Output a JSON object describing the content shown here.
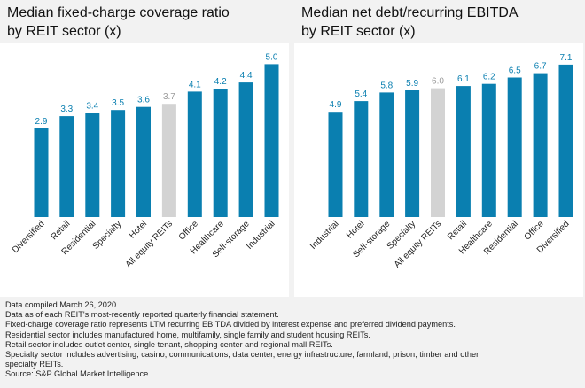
{
  "colors": {
    "bar": "#0a7fb0",
    "highlight_bar": "#d3d3d3",
    "value_label": "#0a7fb0",
    "highlight_label": "#9a9a9a"
  },
  "chart_data": [
    {
      "type": "bar",
      "title": "Median fixed-charge coverage ratio\nby REIT sector (x)",
      "categories": [
        "Diversified",
        "Retail",
        "Residential",
        "Specialty",
        "Hotel",
        "All equity REITs",
        "Office",
        "Healthcare",
        "Self-storage",
        "Industrial"
      ],
      "values": [
        2.9,
        3.3,
        3.4,
        3.5,
        3.6,
        3.7,
        4.1,
        4.2,
        4.4,
        5.0
      ],
      "value_labels": [
        "2.9",
        "3.3",
        "3.4",
        "3.5",
        "3.6",
        "3.7",
        "4.1",
        "4.2",
        "4.4",
        "5.0"
      ],
      "highlight_category": "All equity REITs",
      "ylim": [
        0,
        5.3
      ],
      "grid": false,
      "xlabel": "",
      "ylabel": ""
    },
    {
      "type": "bar",
      "title": "Median net debt/recurring EBITDA\nby REIT sector (x)",
      "categories": [
        "Industrial",
        "Hotel",
        "Self-storage",
        "Specialty",
        "All equity REITs",
        "Retail",
        "Healthcare",
        "Residential",
        "Office",
        "Diversified"
      ],
      "values": [
        4.9,
        5.4,
        5.8,
        5.9,
        6.0,
        6.1,
        6.2,
        6.5,
        6.7,
        7.1
      ],
      "value_labels": [
        "4.9",
        "5.4",
        "5.8",
        "5.9",
        "6.0",
        "6.1",
        "6.2",
        "6.5",
        "6.7",
        "7.1"
      ],
      "highlight_category": "All equity REITs",
      "ylim": [
        0,
        7.55
      ],
      "grid": false,
      "xlabel": "",
      "ylabel": ""
    }
  ],
  "footnotes": [
    "Data compiled March 26, 2020.",
    "Data as of each REIT's most-recently reported quarterly financial statement.",
    "Fixed-charge coverage ratio represents LTM recurring EBITDA divided by interest expense and preferred dividend payments.",
    "Residential sector includes manufactured home, multifamily, single family and student housing REITs.",
    "Retail sector includes outlet center, single tenant, shopping center and regional mall REITs.",
    "Specialty sector includes advertising, casino, communications, data center, energy infrastructure, farmland, prison, timber and other",
    "specialty REITs.",
    "Source: S&P Global Market Intelligence"
  ]
}
